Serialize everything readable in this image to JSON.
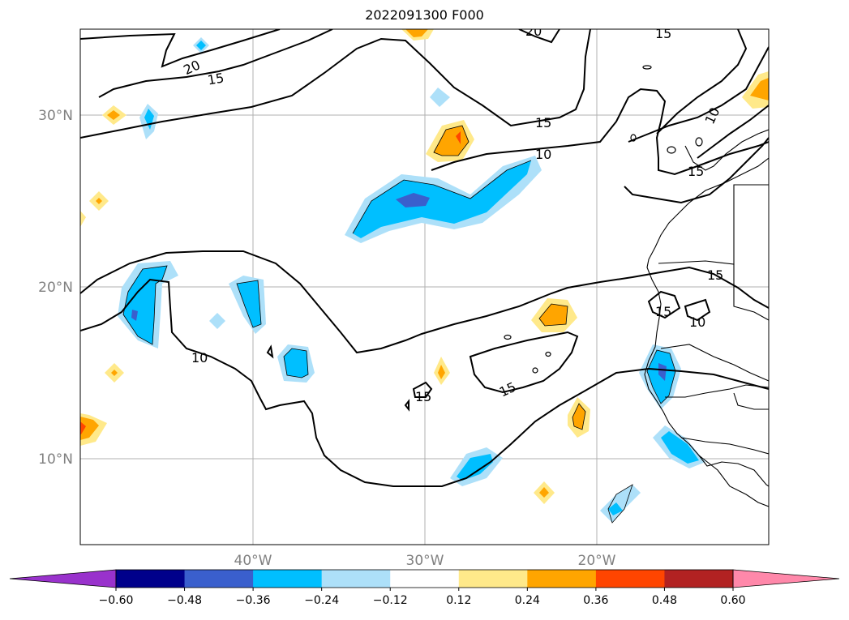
{
  "title": "2022091300 F000",
  "lat_labels": [
    "30°N",
    "20°N",
    "10°N"
  ],
  "lon_labels": [
    "40°W",
    "30°W",
    "20°W"
  ],
  "contour_labels": [
    "20",
    "15",
    "20",
    "15",
    "10",
    "15",
    "10",
    "15",
    "15",
    "10",
    "15",
    "15",
    "15",
    "10",
    "15"
  ],
  "colorbar": {
    "colors": [
      "#9932cc",
      "#00008b",
      "#3a5fcd",
      "#00bfff",
      "#ade0f9",
      "#ffffff",
      "#ffe98a",
      "#ffa500",
      "#ff4500",
      "#b22222",
      "#ff88aa"
    ],
    "tick_labels": [
      "−0.60",
      "−0.48",
      "−0.36",
      "−0.24",
      "−0.12",
      "0.12",
      "0.24",
      "0.36",
      "0.48",
      "0.60"
    ],
    "extend": "both"
  },
  "colors": {
    "grid": "#b0b0b0",
    "contour": "#000000",
    "coast": "#000000"
  }
}
